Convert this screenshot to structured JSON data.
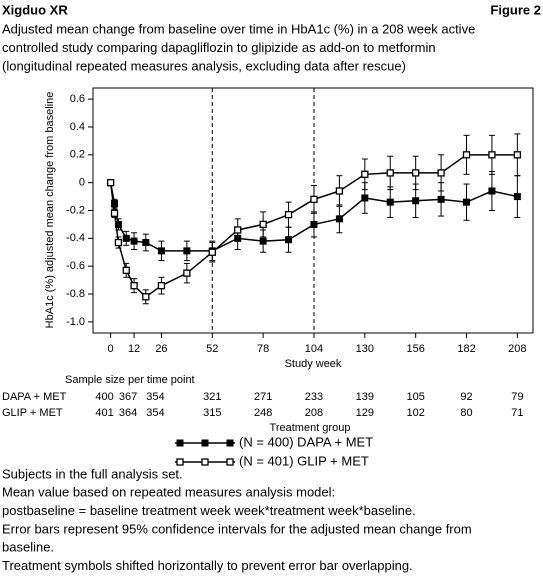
{
  "header": {
    "product": "Xigduo XR",
    "figure": "Figure 2"
  },
  "chart_data": {
    "type": "line",
    "title_lines": [
      "Adjusted mean change from baseline over time in HbA1c (%) in a 208 week active",
      "controlled study comparing dapagliflozin to glipizide as add-on to metformin",
      "(longitudinal repeated measures analysis, excluding data after rescue)"
    ],
    "ylabel": "HbA1c (%) adjusted mean change from baseline",
    "xlabel": "Study week",
    "legend_title": "Treatment group",
    "x": [
      0,
      2,
      4,
      8,
      12,
      18,
      26,
      39,
      52,
      65,
      78,
      91,
      104,
      117,
      130,
      143,
      156,
      169,
      182,
      195,
      208
    ],
    "series": [
      {
        "name": "(N = 400) DAPA + MET",
        "color": "#000000",
        "marker": "filled-square",
        "values": [
          0,
          -0.15,
          -0.3,
          -0.4,
          -0.42,
          -0.43,
          -0.49,
          -0.49,
          -0.49,
          -0.4,
          -0.42,
          -0.41,
          -0.3,
          -0.26,
          -0.11,
          -0.14,
          -0.13,
          -0.12,
          -0.14,
          -0.06,
          -0.1
        ],
        "errors": [
          0,
          0.03,
          0.04,
          0.05,
          0.06,
          0.06,
          0.07,
          0.07,
          0.07,
          0.08,
          0.08,
          0.09,
          0.09,
          0.1,
          0.11,
          0.11,
          0.12,
          0.12,
          0.13,
          0.14,
          0.15
        ]
      },
      {
        "name": "(N = 401) GLIP + MET",
        "color": "#000000",
        "marker": "open-square",
        "values": [
          0,
          -0.22,
          -0.43,
          -0.63,
          -0.74,
          -0.82,
          -0.74,
          -0.65,
          -0.5,
          -0.34,
          -0.3,
          -0.23,
          -0.12,
          -0.06,
          0.06,
          0.07,
          0.07,
          0.07,
          0.2,
          0.2,
          0.2
        ],
        "errors": [
          0,
          0.03,
          0.04,
          0.05,
          0.05,
          0.05,
          0.06,
          0.07,
          0.07,
          0.08,
          0.09,
          0.09,
          0.1,
          0.11,
          0.11,
          0.12,
          0.12,
          0.13,
          0.14,
          0.14,
          0.15
        ]
      }
    ],
    "xlim": [
      -9,
      216
    ],
    "ylim": [
      -1.08,
      0.68
    ],
    "xticks": [
      0,
      12,
      26,
      52,
      78,
      104,
      130,
      156,
      182,
      208
    ],
    "yticks": [
      0.6,
      0.4,
      0.2,
      0,
      -0.2,
      -0.4,
      -0.6,
      -0.8,
      {
        "value": -1,
        "label": "-1.0"
      }
    ],
    "vlines": [
      52,
      104
    ],
    "grid": false
  },
  "sample_size": {
    "title": "Sample size per time point",
    "rows": [
      {
        "label": "DAPA + MET",
        "values": [
          "400",
          "367",
          "354",
          "321",
          "271",
          "233",
          "139",
          "105",
          "92",
          "79"
        ]
      },
      {
        "label": "GLIP + MET",
        "values": [
          "401",
          "364",
          "354",
          "315",
          "248",
          "208",
          "129",
          "102",
          "80",
          "71"
        ]
      }
    ]
  },
  "notes": [
    "Subjects in the full analysis set.",
    "Mean value based on repeated measures analysis model:",
    "postbaseline = baseline treatment week week*treatment week*baseline.",
    "Error bars represent 95% confidence intervals for the adjusted mean change from",
    "baseline.",
    "Treatment symbols shifted horizontally to prevent error bar overlapping."
  ]
}
